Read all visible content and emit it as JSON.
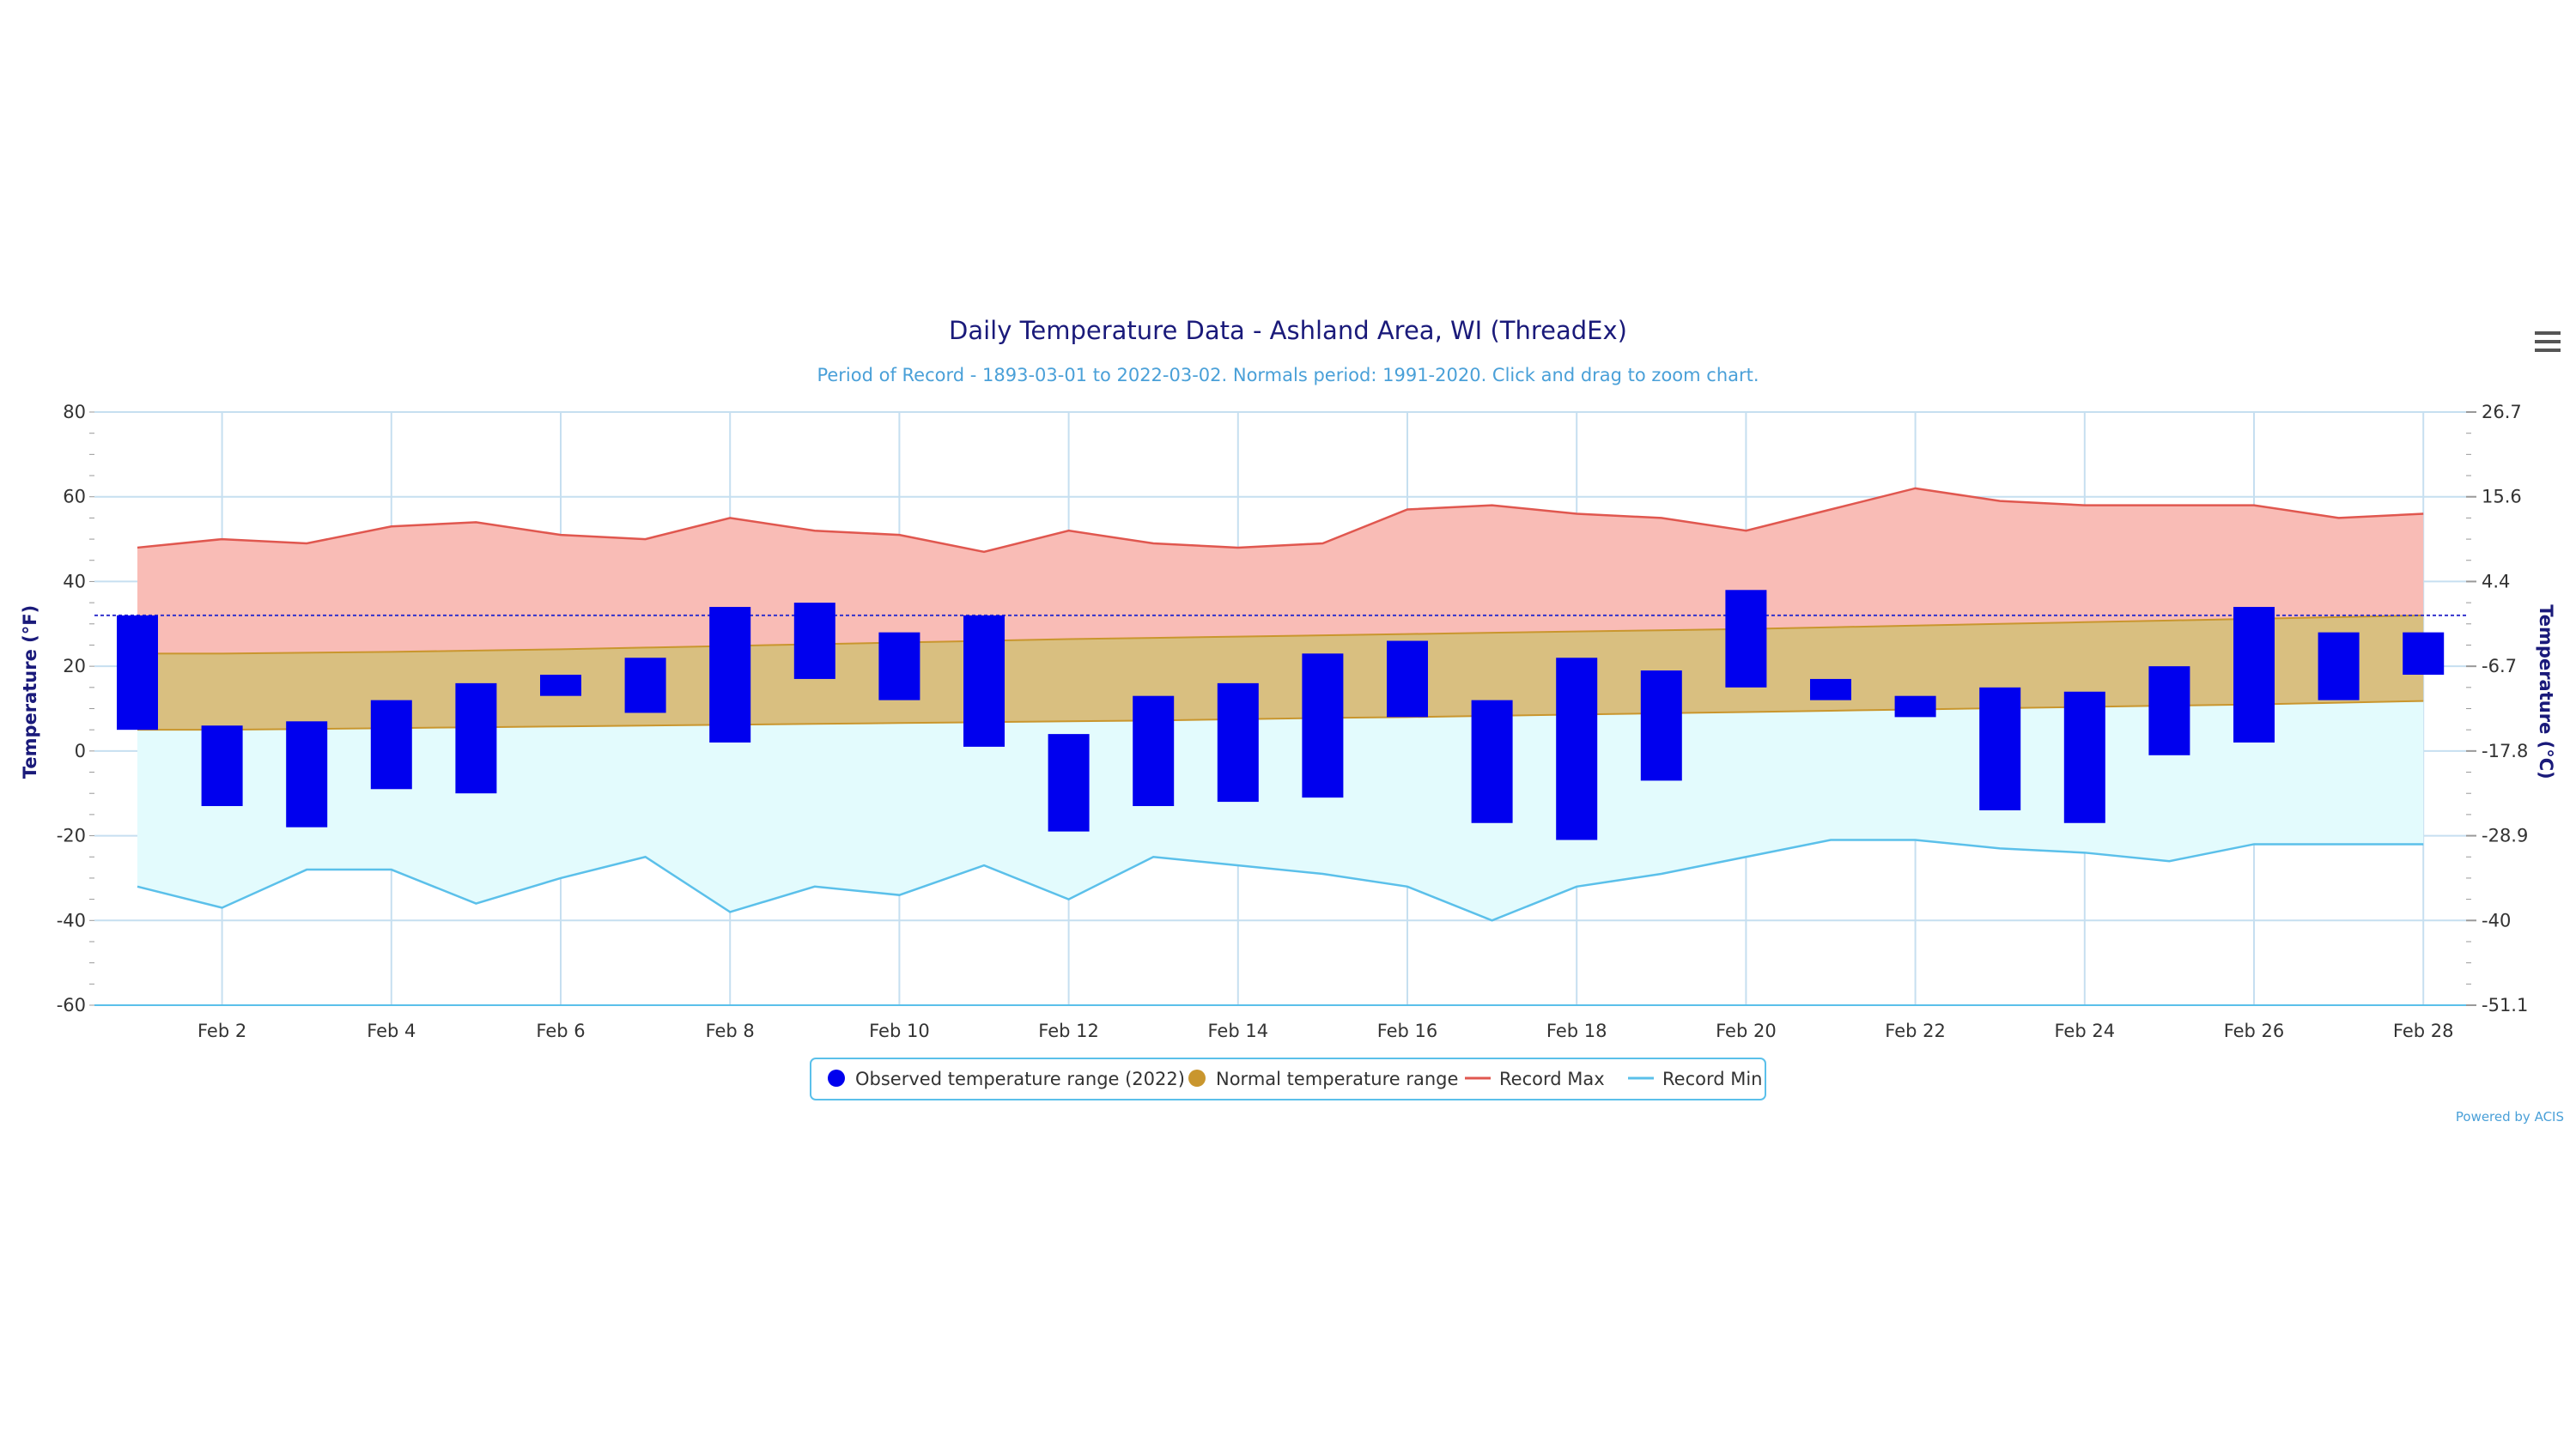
{
  "menu_icon": "hamburger-menu-icon",
  "colors": {
    "observed": "#0000ee",
    "normal_fill": "#d9bf80",
    "normal_line": "#c9962e",
    "record_max_line": "#e0574f",
    "record_max_fill": "#f9bcb6",
    "record_min_line": "#5bc0ea",
    "record_min_fill": "#e3fbfd",
    "grid": "#c6dff0",
    "freeze_line": "#3333cc"
  },
  "chart_data": {
    "type": "bar",
    "title": "Daily Temperature Data - Ashland Area, WI (ThreadEx)",
    "subtitle": "Period of Record - 1893-03-01 to 2022-03-02. Normals period: 1991-2020. Click and drag to zoom chart.",
    "ylabel": "Temperature (°F)",
    "ylabel_right": "Temperature (°C)",
    "ylim": [
      -60,
      80
    ],
    "yticks": [
      "80",
      "60",
      "40",
      "20",
      "0",
      "-20",
      "-40",
      "-60"
    ],
    "yticks_right": [
      "26.7",
      "15.6",
      "4.4",
      "-6.7",
      "-17.8",
      "-28.9",
      "-40",
      "-51.1"
    ],
    "xtick_labels": [
      "Feb 2",
      "Feb 4",
      "Feb 6",
      "Feb 8",
      "Feb 10",
      "Feb 12",
      "Feb 14",
      "Feb 16",
      "Feb 18",
      "Feb 20",
      "Feb 22",
      "Feb 24",
      "Feb 26",
      "Feb 28"
    ],
    "days": [
      1,
      2,
      3,
      4,
      5,
      6,
      7,
      8,
      9,
      10,
      11,
      12,
      13,
      14,
      15,
      16,
      17,
      18,
      19,
      20,
      21,
      22,
      23,
      24,
      25,
      26,
      27,
      28
    ],
    "reference_line": 32,
    "series": [
      {
        "name": "Observed temperature range (2022)",
        "type": "columnrange",
        "high": [
          32,
          6,
          7,
          12,
          16,
          18,
          22,
          34,
          35,
          28,
          32,
          4,
          13,
          16,
          23,
          26,
          12,
          22,
          19,
          38,
          17,
          13,
          15,
          14,
          20,
          34,
          28,
          28
        ],
        "low": [
          5,
          -13,
          -18,
          -9,
          -10,
          13,
          9,
          2,
          17,
          12,
          1,
          -19,
          -13,
          -12,
          -11,
          8,
          -17,
          -21,
          -7,
          15,
          12,
          8,
          -14,
          -17,
          -1,
          2,
          12,
          18
        ]
      },
      {
        "name": "Normal temperature range",
        "type": "arearange",
        "high": [
          23,
          23,
          23.2,
          23.4,
          23.7,
          24,
          24.4,
          24.8,
          25.2,
          25.6,
          26,
          26.4,
          26.7,
          27,
          27.3,
          27.6,
          27.9,
          28.2,
          28.5,
          28.8,
          29.2,
          29.6,
          30,
          30.4,
          30.8,
          31.2,
          31.6,
          32
        ],
        "low": [
          5,
          5,
          5.2,
          5.4,
          5.6,
          5.8,
          6,
          6.2,
          6.4,
          6.6,
          6.8,
          7,
          7.2,
          7.5,
          7.8,
          8,
          8.3,
          8.6,
          8.9,
          9.2,
          9.5,
          9.8,
          10.1,
          10.4,
          10.7,
          11,
          11.4,
          11.8
        ]
      },
      {
        "name": "Record Max",
        "type": "line",
        "values": [
          48,
          50,
          49,
          53,
          54,
          51,
          50,
          55,
          52,
          51,
          47,
          52,
          49,
          48,
          49,
          57,
          58,
          56,
          55,
          52,
          57,
          62,
          59,
          58,
          58,
          58,
          55,
          56
        ]
      },
      {
        "name": "Record Min",
        "type": "line",
        "values": [
          -32,
          -37,
          -28,
          -28,
          -36,
          -30,
          -25,
          -38,
          -32,
          -34,
          -27,
          -35,
          -25,
          -27,
          -29,
          -32,
          -40,
          -32,
          -29,
          -25,
          -21,
          -21,
          -23,
          -24,
          -26,
          -22,
          -22,
          -22
        ]
      }
    ],
    "legend_position": "bottom-center",
    "grid": true,
    "credit": "Powered by ACIS"
  }
}
